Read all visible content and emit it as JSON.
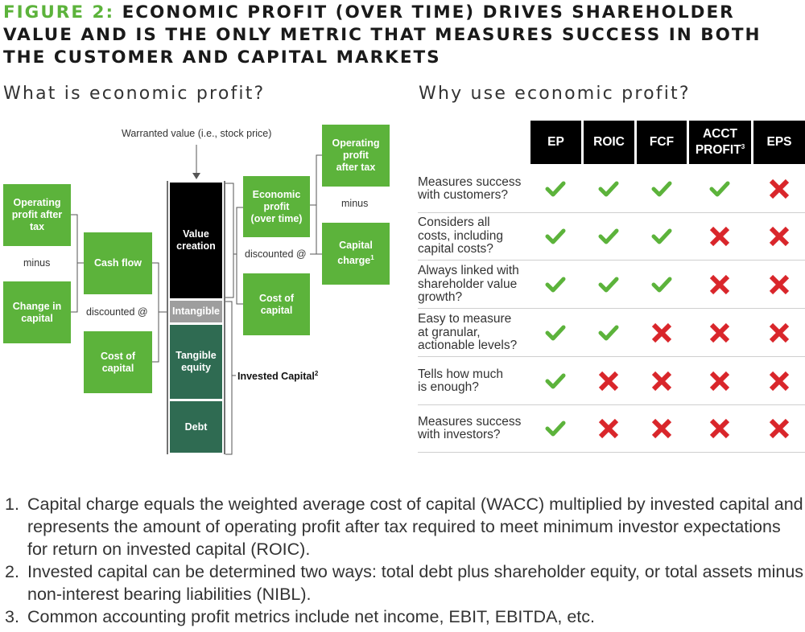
{
  "figure": {
    "label": "FIGURE 2:",
    "title": " ECONOMIC PROFIT (OVER TIME) DRIVES SHAREHOLDER VALUE AND IS THE ONLY METRIC THAT MEASURES SUCCESS IN BOTH THE CUSTOMER AND CAPITAL MARKETS"
  },
  "left": {
    "heading": "What is economic profit?",
    "top_label": "Warranted value (i.e., stock price)",
    "opat_left": "Operating\nprofit after\ntax",
    "minus_left": "minus",
    "change_capital": "Change in\ncapital",
    "cash_flow": "Cash flow",
    "discounted_left": "discounted @",
    "cost_capital_left": "Cost of\ncapital",
    "stack": {
      "value_creation": "Value\ncreation",
      "intangible": "Intangible",
      "tangible_equity": "Tangible\nequity",
      "debt": "Debt"
    },
    "invested_capital": "Invested Capital",
    "invested_capital_note": "2",
    "economic_profit": "Economic\nprofit\n(over time)",
    "discounted_right": "discounted @",
    "cost_capital_right": "Cost of\ncapital",
    "opat_right": "Operating\nprofit\nafter tax",
    "minus_right": "minus",
    "capital_charge": "Capital\ncharge",
    "capital_charge_note": "1",
    "colors": {
      "green": "#5cb33b",
      "black": "#000000",
      "grey": "#9e9e9e",
      "dark_green": "#2f6b52"
    }
  },
  "right": {
    "heading": "Why use economic profit?",
    "columns": [
      {
        "label": "EP"
      },
      {
        "label": "ROIC"
      },
      {
        "label": "FCF"
      },
      {
        "label": "ACCT\nPROFIT",
        "note": "3"
      },
      {
        "label": "EPS"
      }
    ],
    "rows": [
      {
        "label": "Measures success\nwith customers?",
        "marks": [
          "check",
          "check",
          "check",
          "check",
          "cross"
        ]
      },
      {
        "label": "Considers all\ncosts, including\ncapital costs?",
        "marks": [
          "check",
          "check",
          "check",
          "cross",
          "cross"
        ]
      },
      {
        "label": "Always linked with\nshareholder value\ngrowth?",
        "marks": [
          "check",
          "check",
          "check",
          "cross",
          "cross"
        ]
      },
      {
        "label": "Easy to measure\nat granular,\nactionable levels?",
        "marks": [
          "check",
          "check",
          "cross",
          "cross",
          "cross"
        ]
      },
      {
        "label": "Tells how much\nis enough?",
        "marks": [
          "check",
          "cross",
          "cross",
          "cross",
          "cross"
        ]
      },
      {
        "label": "Measures success\nwith investors?",
        "marks": [
          "check",
          "cross",
          "cross",
          "cross",
          "cross"
        ]
      }
    ],
    "colors": {
      "check": "#5cb33b",
      "cross": "#d9262b"
    }
  },
  "notes": [
    {
      "num": "1.",
      "text": "Capital charge equals the weighted average cost of capital (WACC) multiplied by invested capital and represents the amount of operating profit after tax required to meet minimum investor expectations for return on invested capital (ROIC)."
    },
    {
      "num": "2.",
      "text": "Invested capital can be determined two ways: total debt plus shareholder equity, or total assets minus non-interest bearing liabilities (NIBL)."
    },
    {
      "num": "3.",
      "text": "Common accounting profit metrics include net income, EBIT, EBITDA, etc."
    }
  ]
}
